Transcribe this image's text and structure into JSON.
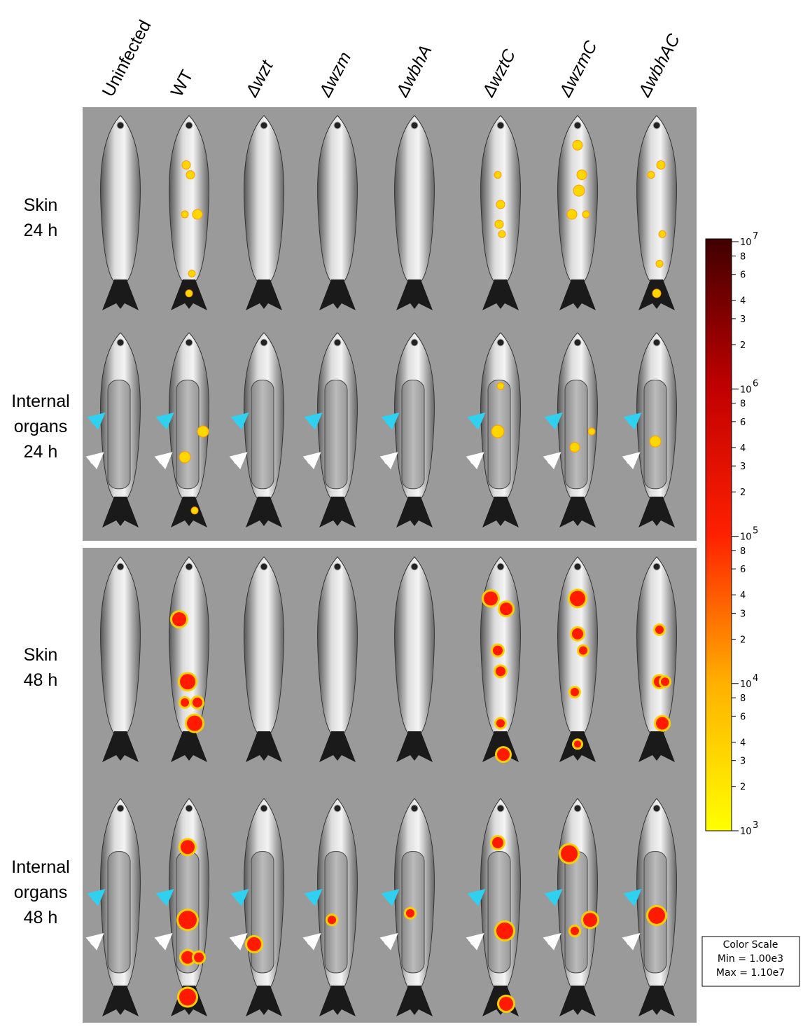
{
  "columns": [
    "Uninfected",
    "WT",
    "Δwzt",
    "Δwzm",
    "ΔwbhA",
    "ΔwztC",
    "ΔwzmC",
    "ΔwbhAC"
  ],
  "rows": [
    [
      "Skin",
      "24 h"
    ],
    [
      "Internal",
      "organs",
      "24 h"
    ],
    [
      "Skin",
      "48 h"
    ],
    [
      "Internal",
      "organs",
      "48 h"
    ]
  ],
  "colorbar": {
    "base": "10",
    "decades": [
      3,
      4,
      5,
      6,
      7
    ],
    "minor_labels": [
      2,
      3,
      4,
      6,
      8
    ]
  },
  "color_scale_box": {
    "title": "Color Scale",
    "min": "Min = 1.00e3",
    "max": "Max = 1.10e7"
  }
}
